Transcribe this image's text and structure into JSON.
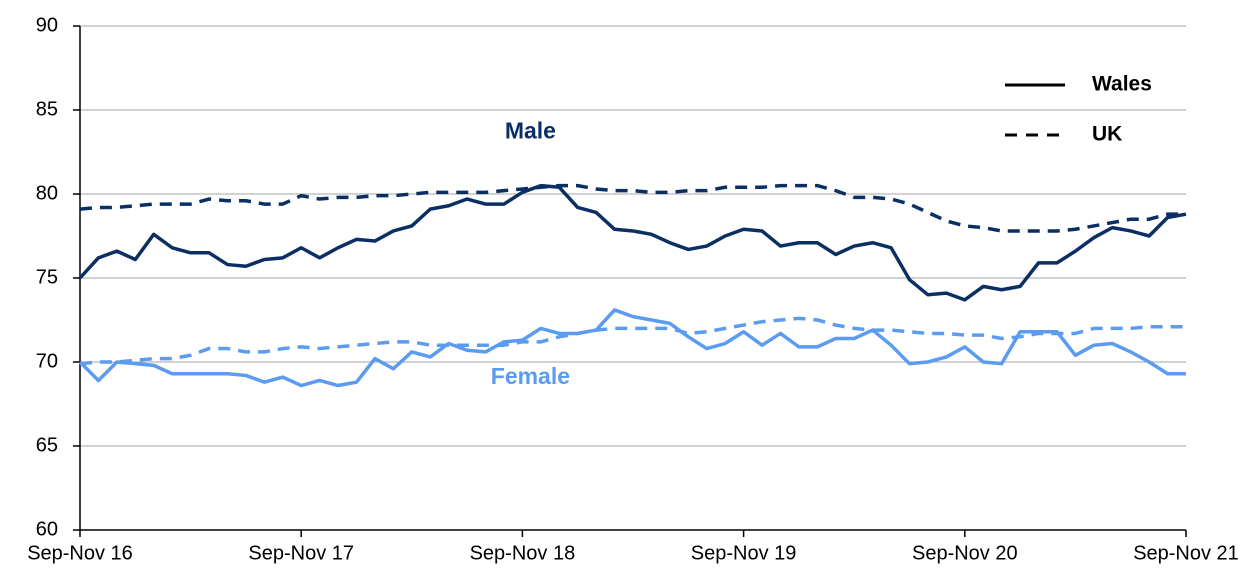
{
  "chart_data": {
    "type": "line",
    "categories": [
      "Sep-Nov 16",
      null,
      null,
      null,
      null,
      null,
      null,
      null,
      null,
      null,
      null,
      null,
      "Sep-Nov 17",
      null,
      null,
      null,
      null,
      null,
      null,
      null,
      null,
      null,
      null,
      null,
      "Sep-Nov 18",
      null,
      null,
      null,
      null,
      null,
      null,
      null,
      null,
      null,
      null,
      null,
      "Sep-Nov 19",
      null,
      null,
      null,
      null,
      null,
      null,
      null,
      null,
      null,
      null,
      null,
      "Sep-Nov 20",
      null,
      null,
      null,
      null,
      null,
      null,
      null,
      null,
      null,
      null,
      null,
      "Sep-Nov 21"
    ],
    "ylim": [
      60,
      90
    ],
    "yticks": [
      60,
      65,
      70,
      75,
      80,
      85,
      90
    ],
    "grid": true,
    "legend_position": "top-right",
    "series": [
      {
        "name": "Wales",
        "group": "Male",
        "color": "#0b2e63",
        "dashed": false,
        "values": [
          75.0,
          76.2,
          76.6,
          76.1,
          77.6,
          76.8,
          76.5,
          76.5,
          75.8,
          75.7,
          76.1,
          76.2,
          76.8,
          76.2,
          76.8,
          77.3,
          77.2,
          77.8,
          78.1,
          79.1,
          79.3,
          79.7,
          79.4,
          79.4,
          80.1,
          80.5,
          80.4,
          79.2,
          78.9,
          77.9,
          77.8,
          77.6,
          77.1,
          76.7,
          76.9,
          77.5,
          77.9,
          77.8,
          76.9,
          77.1,
          77.1,
          76.4,
          76.9,
          77.1,
          76.8,
          74.9,
          74.0,
          74.1,
          73.7,
          74.5,
          74.3,
          74.5,
          75.9,
          75.9,
          76.6,
          77.4,
          78.0,
          77.8,
          77.5,
          78.6,
          78.8
        ]
      },
      {
        "name": "UK",
        "group": "Male",
        "color": "#0b2e63",
        "dashed": true,
        "values": [
          79.1,
          79.2,
          79.2,
          79.3,
          79.4,
          79.4,
          79.4,
          79.7,
          79.6,
          79.6,
          79.4,
          79.4,
          79.9,
          79.7,
          79.8,
          79.8,
          79.9,
          79.9,
          80.0,
          80.1,
          80.1,
          80.1,
          80.1,
          80.2,
          80.3,
          80.4,
          80.5,
          80.5,
          80.3,
          80.2,
          80.2,
          80.1,
          80.1,
          80.2,
          80.2,
          80.4,
          80.4,
          80.4,
          80.5,
          80.5,
          80.5,
          80.2,
          79.8,
          79.8,
          79.7,
          79.4,
          78.9,
          78.4,
          78.1,
          78.0,
          77.8,
          77.8,
          77.8,
          77.8,
          77.9,
          78.1,
          78.3,
          78.5,
          78.5,
          78.8,
          78.8
        ]
      },
      {
        "name": "Wales",
        "group": "Female",
        "color": "#5b9bf0",
        "dashed": false,
        "values": [
          70.0,
          68.9,
          70.0,
          69.9,
          69.8,
          69.3,
          69.3,
          69.3,
          69.3,
          69.2,
          68.8,
          69.1,
          68.6,
          68.9,
          68.6,
          68.8,
          70.2,
          69.6,
          70.6,
          70.3,
          71.1,
          70.7,
          70.6,
          71.2,
          71.3,
          72.0,
          71.7,
          71.7,
          71.9,
          73.1,
          72.7,
          72.5,
          72.3,
          71.5,
          70.8,
          71.1,
          71.8,
          71.0,
          71.7,
          70.9,
          70.9,
          71.4,
          71.4,
          71.9,
          71.0,
          69.9,
          70.0,
          70.3,
          70.9,
          70.0,
          69.9,
          71.8,
          71.8,
          71.8,
          70.4,
          71.0,
          71.1,
          70.6,
          70.0,
          69.3,
          69.3
        ]
      },
      {
        "name": "UK",
        "group": "Female",
        "color": "#5b9bf0",
        "dashed": true,
        "values": [
          69.9,
          70.0,
          70.0,
          70.1,
          70.2,
          70.2,
          70.4,
          70.8,
          70.8,
          70.6,
          70.6,
          70.8,
          70.9,
          70.8,
          70.9,
          71.0,
          71.1,
          71.2,
          71.2,
          71.0,
          71.0,
          71.0,
          71.0,
          71.0,
          71.2,
          71.2,
          71.5,
          71.7,
          71.9,
          72.0,
          72.0,
          72.0,
          72.0,
          71.7,
          71.8,
          72.0,
          72.2,
          72.4,
          72.5,
          72.6,
          72.5,
          72.2,
          72.0,
          71.9,
          71.9,
          71.8,
          71.7,
          71.7,
          71.6,
          71.6,
          71.4,
          71.5,
          71.7,
          71.7,
          71.7,
          72.0,
          72.0,
          72.0,
          72.1,
          72.1,
          72.1
        ]
      }
    ]
  }
}
